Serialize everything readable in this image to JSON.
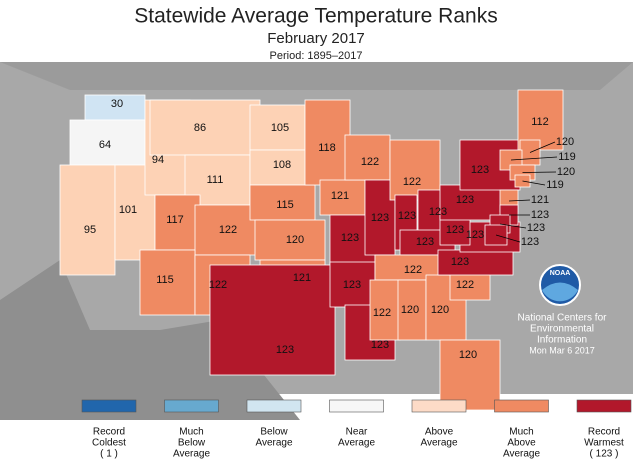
{
  "title": "Statewide Average Temperature Ranks",
  "subtitle": "February 2017",
  "period": "Period: 1895–2017",
  "states": [
    {
      "rank": "30",
      "color": "#d0e4f3"
    },
    {
      "rank": "64",
      "color": "#f5f5f5"
    },
    {
      "rank": "95",
      "color": "#fdd2b5"
    },
    {
      "rank": "101",
      "color": "#fdd2b5"
    },
    {
      "rank": "94",
      "color": "#fdd2b5"
    },
    {
      "rank": "86",
      "color": "#fdd2b5"
    },
    {
      "rank": "111",
      "color": "#fdd2b5"
    },
    {
      "rank": "117",
      "color": "#ef8a62"
    },
    {
      "rank": "122",
      "color": "#ef8a62"
    },
    {
      "rank": "115",
      "color": "#ef8a62"
    },
    {
      "rank": "122",
      "color": "#ef8a62"
    },
    {
      "rank": "105",
      "color": "#fdd2b5"
    },
    {
      "rank": "108",
      "color": "#fdd2b5"
    },
    {
      "rank": "115",
      "color": "#ef8a62"
    },
    {
      "rank": "120",
      "color": "#ef8a62"
    },
    {
      "rank": "121",
      "color": "#ef8a62"
    },
    {
      "rank": "123",
      "color": "#b2182b"
    },
    {
      "rank": "118",
      "color": "#ef8a62"
    },
    {
      "rank": "121",
      "color": "#ef8a62"
    },
    {
      "rank": "123",
      "color": "#b2182b"
    },
    {
      "rank": "123",
      "color": "#b2182b"
    },
    {
      "rank": "123",
      "color": "#b2182b"
    },
    {
      "rank": "122",
      "color": "#ef8a62"
    },
    {
      "rank": "123",
      "color": "#b2182b"
    },
    {
      "rank": "122",
      "color": "#ef8a62"
    },
    {
      "rank": "123",
      "color": "#b2182b"
    },
    {
      "rank": "123",
      "color": "#b2182b"
    },
    {
      "rank": "123",
      "color": "#b2182b"
    },
    {
      "rank": "122",
      "color": "#ef8a62"
    },
    {
      "rank": "122",
      "color": "#ef8a62"
    },
    {
      "rank": "120",
      "color": "#ef8a62"
    },
    {
      "rank": "120",
      "color": "#ef8a62"
    },
    {
      "rank": "120",
      "color": "#ef8a62"
    },
    {
      "rank": "122",
      "color": "#ef8a62"
    },
    {
      "rank": "123",
      "color": "#b2182b"
    },
    {
      "rank": "123",
      "color": "#b2182b"
    },
    {
      "rank": "123",
      "color": "#b2182b"
    },
    {
      "rank": "123",
      "color": "#b2182b"
    },
    {
      "rank": "123",
      "color": "#b2182b"
    },
    {
      "rank": "112",
      "color": "#ef8a62"
    },
    {
      "rank": "120",
      "color": "#ef8a62"
    },
    {
      "rank": "119",
      "color": "#ef8a62"
    },
    {
      "rank": "120",
      "color": "#ef8a62"
    },
    {
      "rank": "119",
      "color": "#ef8a62"
    },
    {
      "rank": "121",
      "color": "#ef8a62"
    },
    {
      "rank": "123",
      "color": "#b2182b"
    },
    {
      "rank": "123",
      "color": "#b2182b"
    },
    {
      "rank": "123",
      "color": "#b2182b"
    }
  ],
  "legend": [
    {
      "lines": [
        "Record",
        "Coldest",
        "( 1 )"
      ],
      "color": "#2166ac"
    },
    {
      "lines": [
        "Much",
        "Below",
        "Average"
      ],
      "color": "#67a9cf"
    },
    {
      "lines": [
        "Below",
        "Average"
      ],
      "color": "#d1e5f0"
    },
    {
      "lines": [
        "Near",
        "Average"
      ],
      "color": "#f7f7f7"
    },
    {
      "lines": [
        "Above",
        "Average"
      ],
      "color": "#fddbc7"
    },
    {
      "lines": [
        "Much",
        "Above",
        "Average"
      ],
      "color": "#ef8a62"
    },
    {
      "lines": [
        "Record",
        "Warmest",
        "( 123 )"
      ],
      "color": "#b2182b"
    }
  ],
  "credit": {
    "logo": "NOAA",
    "lines": [
      "National Centers for",
      "Environmental",
      "Information"
    ],
    "date": "Mon Mar  6 2017"
  }
}
